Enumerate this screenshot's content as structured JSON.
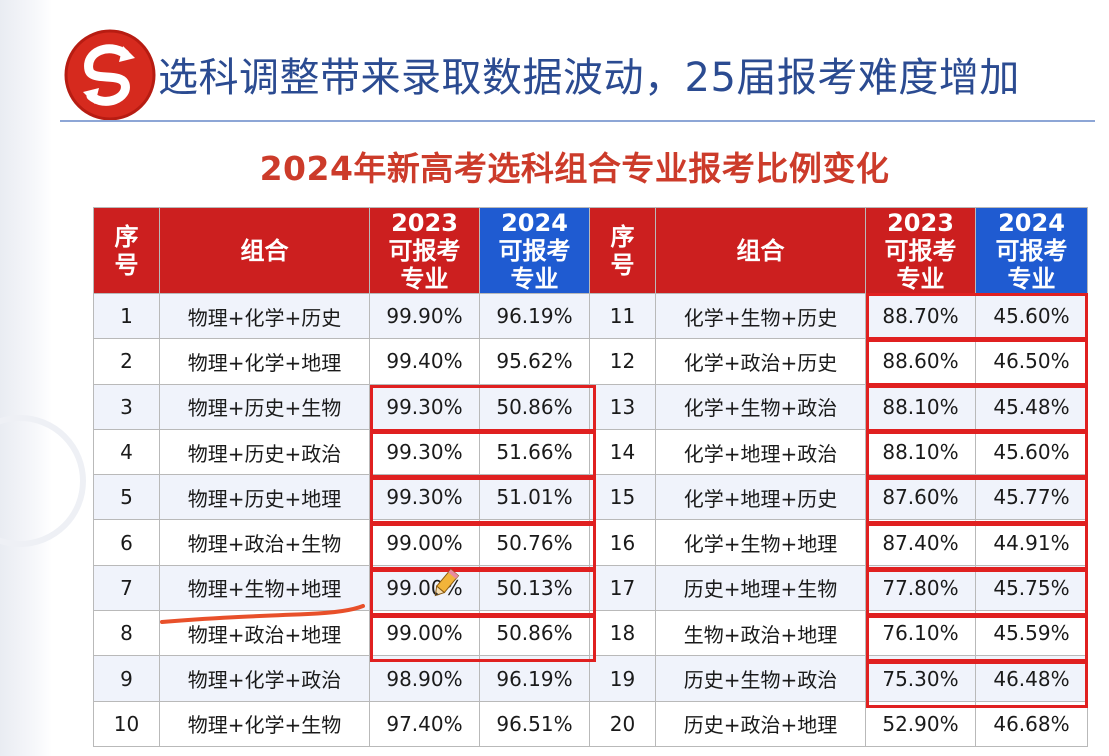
{
  "header": {
    "title": "选科调整带来录取数据波动，25届报考难度增加"
  },
  "colors": {
    "header_red": "#cc1f1f",
    "header_blue": "#1f5bd1",
    "highlight": "#e02020",
    "title_red": "#cc3b2a",
    "header_text_blue": "#2b4b91"
  },
  "table": {
    "title": "2024年新高考选科组合专业报考比例变化",
    "columns": {
      "seq": "序号",
      "combo": "组合",
      "y2023": "2023可报考专业",
      "y2024": "2024可报考专业"
    },
    "rows_left": [
      {
        "seq": "1",
        "combo": "物理+化学+历史",
        "y2023": "99.90%",
        "y2024": "96.19%"
      },
      {
        "seq": "2",
        "combo": "物理+化学+地理",
        "y2023": "99.40%",
        "y2024": "95.62%"
      },
      {
        "seq": "3",
        "combo": "物理+历史+生物",
        "y2023": "99.30%",
        "y2024": "50.86%"
      },
      {
        "seq": "4",
        "combo": "物理+历史+政治",
        "y2023": "99.30%",
        "y2024": "51.66%"
      },
      {
        "seq": "5",
        "combo": "物理+历史+地理",
        "y2023": "99.30%",
        "y2024": "51.01%"
      },
      {
        "seq": "6",
        "combo": "物理+政治+生物",
        "y2023": "99.00%",
        "y2024": "50.76%"
      },
      {
        "seq": "7",
        "combo": "物理+生物+地理",
        "y2023": "99.00%",
        "y2024": "50.13%"
      },
      {
        "seq": "8",
        "combo": "物理+政治+地理",
        "y2023": "99.00%",
        "y2024": "50.86%"
      },
      {
        "seq": "9",
        "combo": "物理+化学+政治",
        "y2023": "98.90%",
        "y2024": "96.19%"
      },
      {
        "seq": "10",
        "combo": "物理+化学+生物",
        "y2023": "97.40%",
        "y2024": "96.51%"
      }
    ],
    "rows_right": [
      {
        "seq": "11",
        "combo": "化学+生物+历史",
        "y2023": "88.70%",
        "y2024": "45.60%"
      },
      {
        "seq": "12",
        "combo": "化学+政治+历史",
        "y2023": "88.60%",
        "y2024": "46.50%"
      },
      {
        "seq": "13",
        "combo": "化学+生物+政治",
        "y2023": "88.10%",
        "y2024": "45.48%"
      },
      {
        "seq": "14",
        "combo": "化学+地理+政治",
        "y2023": "88.10%",
        "y2024": "45.60%"
      },
      {
        "seq": "15",
        "combo": "化学+地理+历史",
        "y2023": "87.60%",
        "y2024": "45.77%"
      },
      {
        "seq": "16",
        "combo": "化学+生物+地理",
        "y2023": "87.40%",
        "y2024": "44.91%"
      },
      {
        "seq": "17",
        "combo": "历史+地理+生物",
        "y2023": "77.80%",
        "y2024": "45.75%"
      },
      {
        "seq": "18",
        "combo": "生物+政治+地理",
        "y2023": "76.10%",
        "y2024": "45.59%"
      },
      {
        "seq": "19",
        "combo": "历史+生物+政治",
        "y2023": "75.30%",
        "y2024": "46.48%"
      },
      {
        "seq": "20",
        "combo": "历史+政治+地理",
        "y2023": "52.90%",
        "y2024": "46.68%"
      }
    ]
  }
}
